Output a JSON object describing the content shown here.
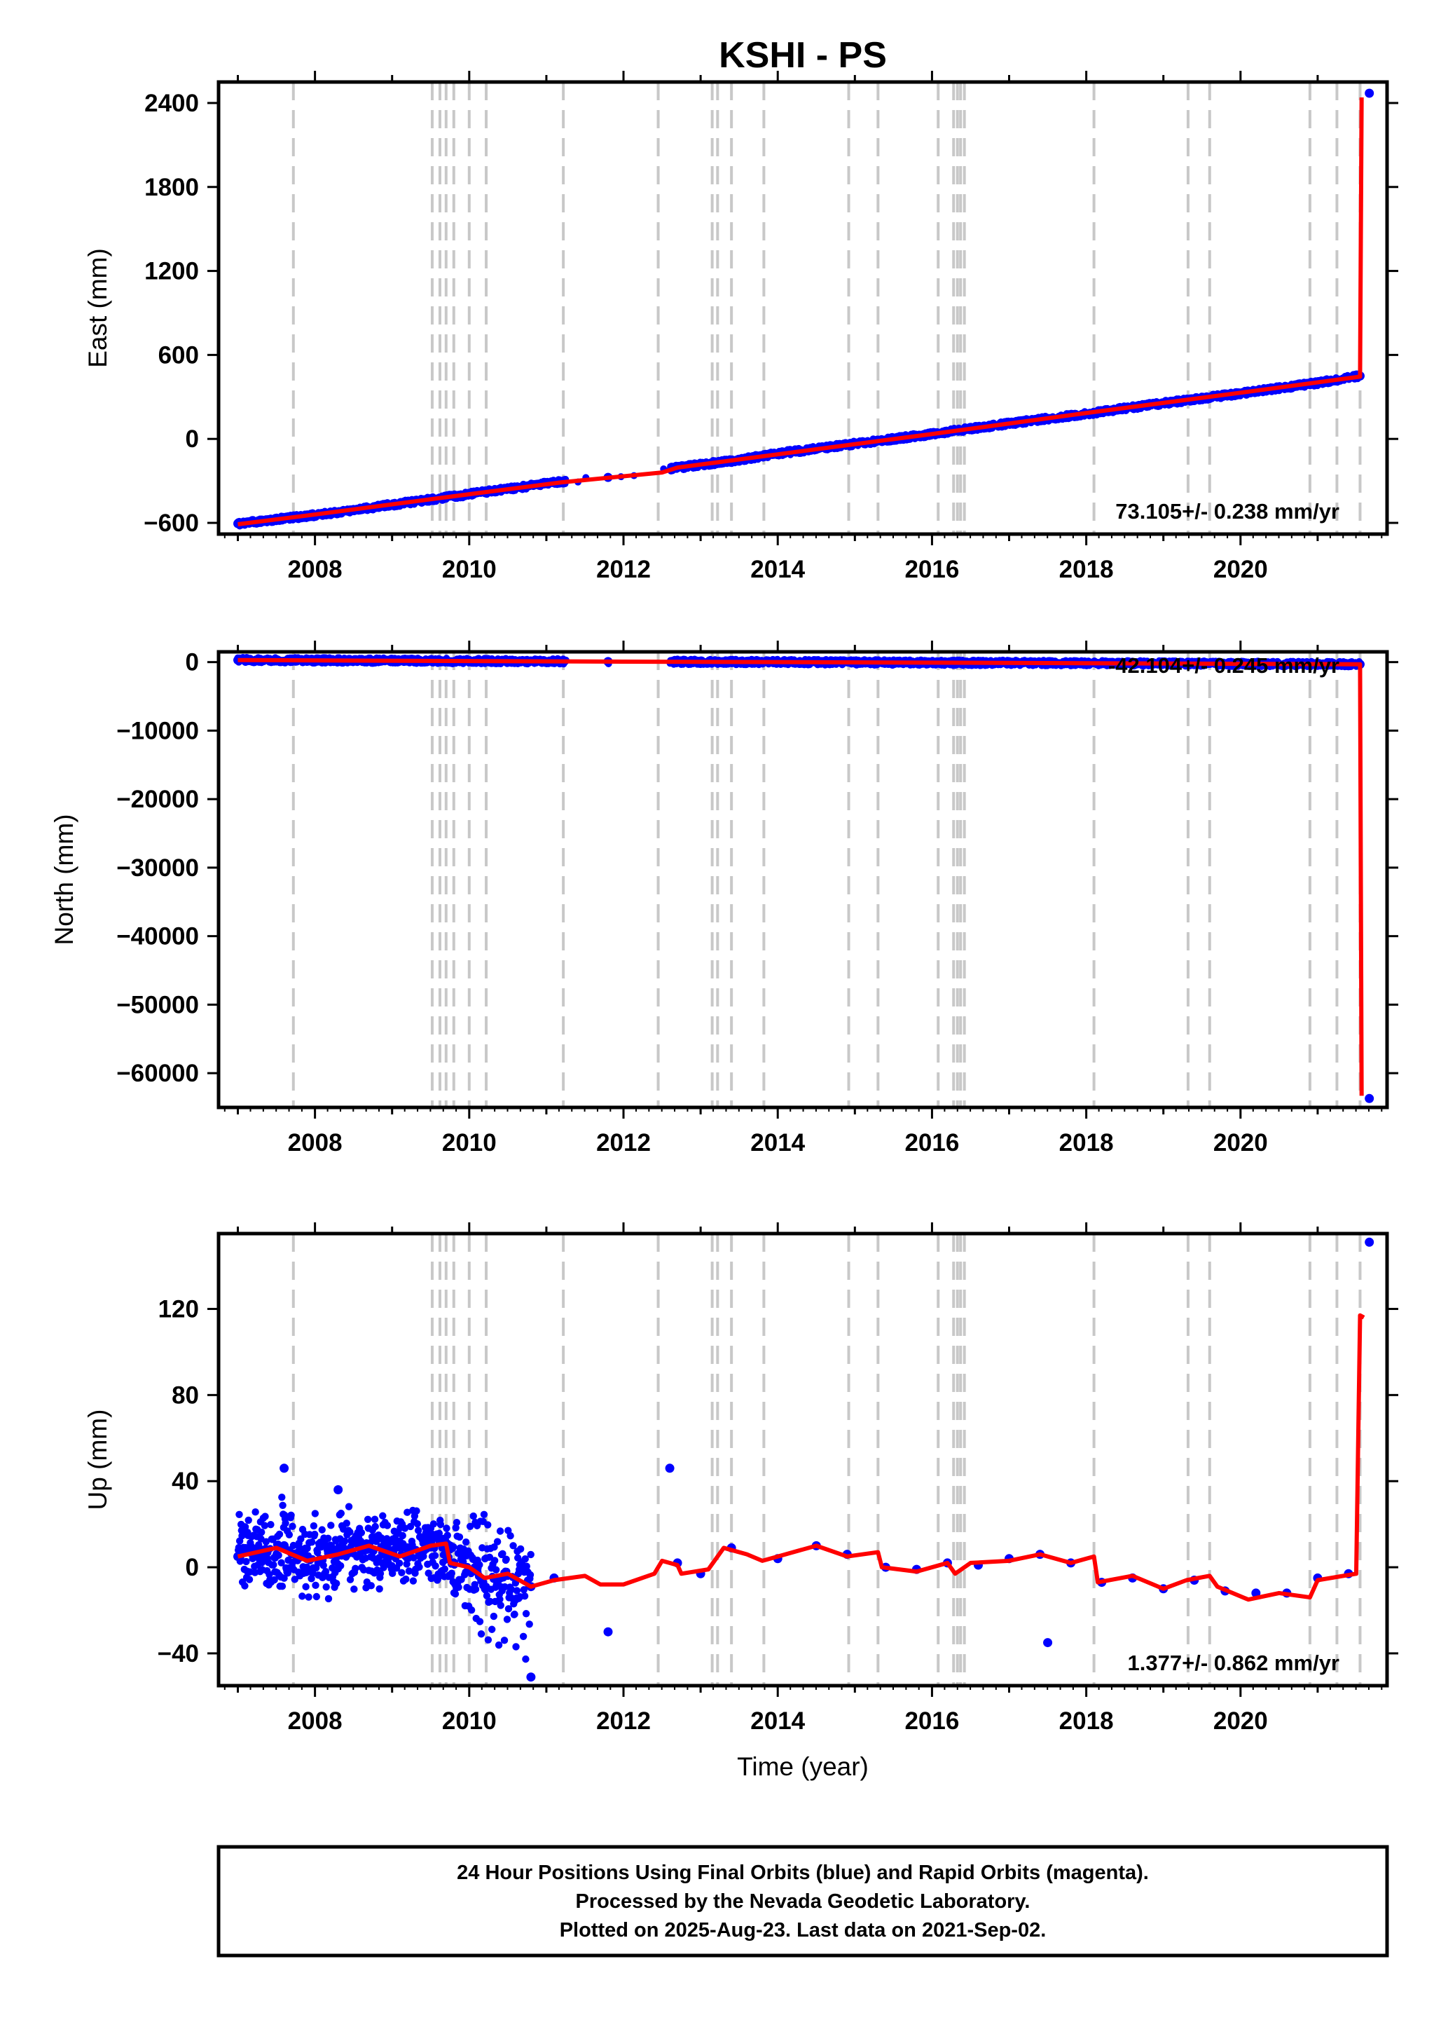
{
  "title": "KSHI - PS",
  "footer": {
    "lines": [
      "24 Hour Positions Using Final Orbits (blue) and Rapid Orbits (magenta).",
      "Processed by the Nevada Geodetic Laboratory.",
      "Plotted on 2025-Aug-23. Last data on 2021-Sep-02."
    ]
  },
  "colors": {
    "data": "#0000ff",
    "model": "#ff0000",
    "equipment_change": "#c8c8c8",
    "frame": "#000000"
  },
  "equipment_changes": [
    2007.72,
    2009.52,
    2009.62,
    2009.7,
    2009.8,
    2010.0,
    2010.22,
    2011.22,
    2012.45,
    2013.15,
    2013.22,
    2013.4,
    2013.82,
    2014.92,
    2015.3,
    2016.08,
    2016.28,
    2016.33,
    2016.37,
    2016.42,
    2018.1,
    2019.32,
    2019.6,
    2020.9,
    2021.25,
    2021.55
  ],
  "chart_data": [
    {
      "type": "scatter",
      "ylabel": "East (mm)",
      "xlabel": "",
      "xlim": [
        2006.75,
        2021.9
      ],
      "ylim": [
        -680,
        2550
      ],
      "yticks": [
        -600,
        0,
        600,
        1200,
        1800,
        2400
      ],
      "xticks": [
        2008,
        2010,
        2012,
        2014,
        2016,
        2018,
        2020
      ],
      "rate": "73.105+/- 0.238 mm/yr",
      "series": [
        {
          "values": [
            [
              2007.0,
              -605
            ],
            [
              2008.0,
              -545
            ],
            [
              2009.0,
              -470
            ],
            [
              2010.0,
              -395
            ],
            [
              2011.2,
              -305
            ],
            [
              2011.8,
              -275
            ],
            [
              2012.7,
              -205
            ],
            [
              2013.5,
              -150
            ],
            [
              2014.0,
              -105
            ],
            [
              2015.0,
              -35
            ],
            [
              2016.0,
              35
            ],
            [
              2017.0,
              110
            ],
            [
              2018.0,
              180
            ],
            [
              2019.0,
              255
            ],
            [
              2020.0,
              325
            ],
            [
              2021.0,
              400
            ],
            [
              2021.55,
              450
            ],
            [
              2021.67,
              2470
            ]
          ]
        },
        {
          "values": [
            [
              2007.0,
              -610
            ],
            [
              2008.0,
              -540
            ],
            [
              2010.0,
              -395
            ],
            [
              2011.2,
              -310
            ],
            [
              2012.5,
              -240
            ],
            [
              2012.7,
              -205
            ],
            [
              2014.0,
              -110
            ],
            [
              2016.0,
              35
            ],
            [
              2018.0,
              185
            ],
            [
              2020.0,
              330
            ],
            [
              2021.55,
              445
            ],
            [
              2021.57,
              2440
            ]
          ]
        }
      ]
    },
    {
      "type": "scatter",
      "ylabel": "North (mm)",
      "xlabel": "",
      "xlim": [
        2006.75,
        2021.9
      ],
      "ylim": [
        -65000,
        1500
      ],
      "yticks": [
        -60000,
        -50000,
        -40000,
        -30000,
        -20000,
        -10000,
        0
      ],
      "xticks": [
        2008,
        2010,
        2012,
        2014,
        2016,
        2018,
        2020
      ],
      "rate": "-42.104+/- 0.245 mm/yr",
      "series": [
        {
          "values": [
            [
              2007.0,
              300
            ],
            [
              2009.0,
              200
            ],
            [
              2011.2,
              100
            ],
            [
              2011.8,
              80
            ],
            [
              2012.7,
              50
            ],
            [
              2014.0,
              0
            ],
            [
              2016.0,
              -80
            ],
            [
              2018.0,
              -160
            ],
            [
              2020.0,
              -250
            ],
            [
              2021.55,
              -320
            ],
            [
              2021.67,
              -63700
            ]
          ]
        },
        {
          "values": [
            [
              2007.0,
              300
            ],
            [
              2011.2,
              100
            ],
            [
              2014.0,
              0
            ],
            [
              2018.0,
              -160
            ],
            [
              2021.55,
              -320
            ],
            [
              2021.57,
              -63300
            ]
          ]
        }
      ]
    },
    {
      "type": "scatter",
      "ylabel": "Up (mm)",
      "xlabel": "Time (year)",
      "xlim": [
        2006.75,
        2021.9
      ],
      "ylim": [
        -55,
        155
      ],
      "yticks": [
        -40,
        0,
        40,
        80,
        120
      ],
      "xticks": [
        2008,
        2010,
        2012,
        2014,
        2016,
        2018,
        2020
      ],
      "rate": "1.377+/- 0.862 mm/yr",
      "series": [
        {
          "values": [
            [
              2007.0,
              5
            ],
            [
              2007.3,
              8
            ],
            [
              2007.6,
              10
            ],
            [
              2007.9,
              4
            ],
            [
              2008.2,
              6
            ],
            [
              2008.6,
              10
            ],
            [
              2008.9,
              6
            ],
            [
              2009.2,
              9
            ],
            [
              2009.5,
              11
            ],
            [
              2009.8,
              2
            ],
            [
              2010.1,
              -2
            ],
            [
              2010.4,
              -5
            ],
            [
              2010.8,
              -9
            ],
            [
              2011.1,
              -5
            ],
            [
              2011.8,
              -30
            ],
            [
              2012.7,
              2
            ],
            [
              2013.0,
              -3
            ],
            [
              2013.4,
              9
            ],
            [
              2014.0,
              4
            ],
            [
              2014.5,
              10
            ],
            [
              2014.9,
              6
            ],
            [
              2015.4,
              0
            ],
            [
              2015.8,
              -1
            ],
            [
              2016.2,
              2
            ],
            [
              2016.6,
              1
            ],
            [
              2017.0,
              4
            ],
            [
              2017.4,
              6
            ],
            [
              2017.8,
              2
            ],
            [
              2018.2,
              -7
            ],
            [
              2018.6,
              -5
            ],
            [
              2019.0,
              -10
            ],
            [
              2019.4,
              -6
            ],
            [
              2019.8,
              -11
            ],
            [
              2020.2,
              -12
            ],
            [
              2020.6,
              -12
            ],
            [
              2021.0,
              -5
            ],
            [
              2021.4,
              -3
            ],
            [
              2021.67,
              151
            ],
            [
              2008.3,
              36
            ],
            [
              2007.6,
              46
            ],
            [
              2012.6,
              46
            ],
            [
              2010.8,
              -51
            ],
            [
              2017.5,
              -35
            ]
          ]
        },
        {
          "values": [
            [
              2007.0,
              5
            ],
            [
              2007.5,
              9
            ],
            [
              2007.9,
              3
            ],
            [
              2008.3,
              6
            ],
            [
              2008.7,
              10
            ],
            [
              2009.1,
              5
            ],
            [
              2009.5,
              10
            ],
            [
              2009.7,
              11
            ],
            [
              2009.75,
              2
            ],
            [
              2010.0,
              0
            ],
            [
              2010.2,
              -5
            ],
            [
              2010.5,
              -3
            ],
            [
              2010.8,
              -9
            ],
            [
              2011.1,
              -6
            ],
            [
              2011.5,
              -4
            ],
            [
              2011.7,
              -8
            ],
            [
              2012.0,
              -8
            ],
            [
              2012.4,
              -3
            ],
            [
              2012.5,
              3
            ],
            [
              2012.7,
              1
            ],
            [
              2012.75,
              -3
            ],
            [
              2013.1,
              -1
            ],
            [
              2013.3,
              9
            ],
            [
              2013.6,
              6
            ],
            [
              2013.8,
              3
            ],
            [
              2014.0,
              5
            ],
            [
              2014.5,
              10
            ],
            [
              2014.9,
              5
            ],
            [
              2015.3,
              7
            ],
            [
              2015.35,
              0
            ],
            [
              2015.8,
              -2
            ],
            [
              2016.2,
              2
            ],
            [
              2016.3,
              -3
            ],
            [
              2016.5,
              2
            ],
            [
              2017.0,
              3
            ],
            [
              2017.4,
              6
            ],
            [
              2017.8,
              2
            ],
            [
              2018.1,
              5
            ],
            [
              2018.15,
              -7
            ],
            [
              2018.6,
              -4
            ],
            [
              2019.0,
              -10
            ],
            [
              2019.3,
              -6
            ],
            [
              2019.6,
              -4
            ],
            [
              2019.7,
              -9
            ],
            [
              2020.1,
              -15
            ],
            [
              2020.5,
              -12
            ],
            [
              2020.9,
              -14
            ],
            [
              2021.0,
              -6
            ],
            [
              2021.5,
              -3
            ],
            [
              2021.55,
              117
            ],
            [
              2021.6,
              116
            ]
          ]
        }
      ]
    }
  ]
}
